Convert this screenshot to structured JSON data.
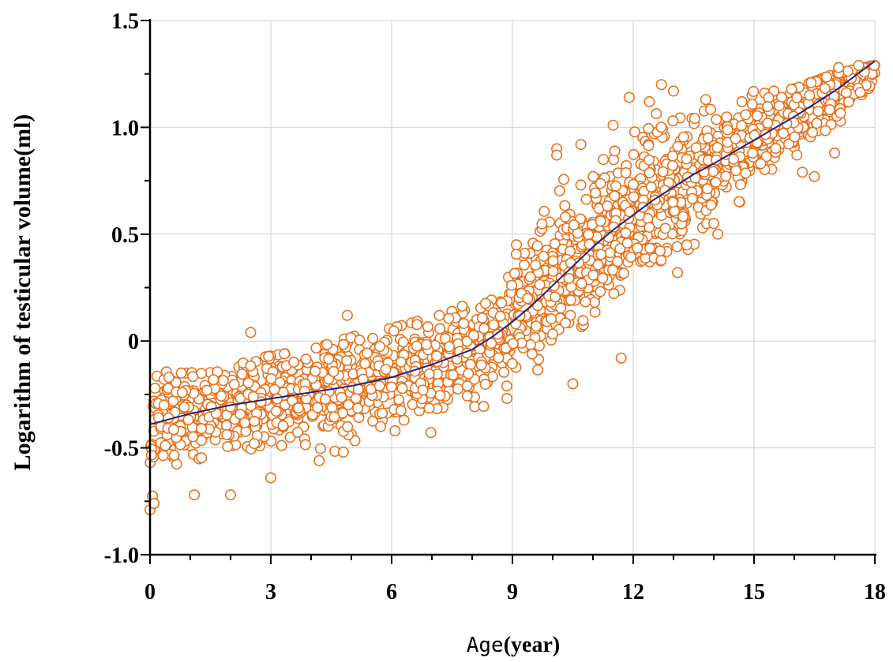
{
  "chart_data": {
    "type": "scatter",
    "title": "",
    "ylabel": "Logarithm of testicular volume(ml)",
    "xlabel_parts": [
      "Age",
      "(year)"
    ],
    "xlim": [
      0,
      18
    ],
    "ylim": [
      -1.0,
      1.5
    ],
    "grid": true,
    "xticks": [
      0,
      3,
      6,
      9,
      12,
      15,
      18
    ],
    "xtick_labels": [
      "0",
      "3",
      "6",
      "9",
      "12",
      "15",
      "18"
    ],
    "yticks": [
      -1.0,
      -0.5,
      0,
      0.5,
      1.0,
      1.5
    ],
    "ytick_labels": [
      "-1.0",
      "-0.5",
      "0",
      "0.5",
      "1.0",
      "1.5"
    ],
    "colors": {
      "points": "#E8711B",
      "fit_line": "#23237E",
      "grid": "#D0D0D0",
      "axis": "#000000"
    },
    "fit_line": {
      "x": [
        0,
        1,
        2,
        3,
        4,
        5,
        6,
        7,
        8,
        8.5,
        9,
        9.5,
        10,
        10.5,
        11,
        11.5,
        12,
        12.5,
        13,
        13.5,
        14,
        15,
        16,
        17,
        18
      ],
      "y": [
        -0.39,
        -0.34,
        -0.3,
        -0.27,
        -0.24,
        -0.21,
        -0.17,
        -0.11,
        -0.04,
        0.02,
        0.09,
        0.17,
        0.26,
        0.35,
        0.44,
        0.52,
        0.59,
        0.66,
        0.72,
        0.78,
        0.83,
        0.94,
        1.05,
        1.17,
        1.31
      ]
    },
    "scatter_bands": {
      "x": [
        0,
        0.5,
        1,
        2,
        3,
        4,
        5,
        6,
        7,
        8,
        8.5,
        9,
        9.5,
        10,
        10.5,
        11,
        11.5,
        12,
        12.5,
        13,
        13.5,
        14,
        14.5,
        15,
        15.5,
        16,
        17,
        18
      ],
      "low": [
        -0.78,
        -0.63,
        -0.68,
        -0.64,
        -0.6,
        -0.54,
        -0.5,
        -0.47,
        -0.44,
        -0.37,
        -0.32,
        -0.25,
        -0.18,
        -0.1,
        -0.01,
        0.09,
        0.16,
        0.22,
        0.29,
        0.35,
        0.45,
        0.55,
        0.63,
        0.7,
        0.76,
        0.82,
        0.9,
        1.02
      ],
      "high": [
        -0.12,
        -0.15,
        -0.15,
        -0.1,
        -0.07,
        -0.04,
        0.02,
        0.06,
        0.11,
        0.18,
        0.24,
        0.36,
        0.6,
        0.74,
        0.84,
        0.92,
        0.98,
        1.03,
        1.06,
        1.09,
        1.08,
        1.1,
        1.1,
        1.17,
        1.17,
        1.18,
        1.25,
        1.29
      ]
    },
    "highlighted_points": [
      {
        "x": 2.5,
        "y": 0.04
      },
      {
        "x": 4.9,
        "y": 0.12
      },
      {
        "x": 10.1,
        "y": 0.9
      },
      {
        "x": 10.1,
        "y": 0.87
      },
      {
        "x": 10.7,
        "y": 0.92
      },
      {
        "x": 11.5,
        "y": 1.01
      },
      {
        "x": 11.9,
        "y": 1.14
      },
      {
        "x": 12.4,
        "y": 1.12
      },
      {
        "x": 12.7,
        "y": 1.2
      },
      {
        "x": 13.0,
        "y": 1.17
      },
      {
        "x": 13.8,
        "y": 1.13
      },
      {
        "x": 14.1,
        "y": 0.5
      },
      {
        "x": 14.0,
        "y": 0.55
      },
      {
        "x": 14.7,
        "y": 1.12
      },
      {
        "x": 16.2,
        "y": 0.79
      },
      {
        "x": 16.5,
        "y": 0.77
      },
      {
        "x": 17.0,
        "y": 0.88
      },
      {
        "x": 17.1,
        "y": 1.28
      },
      {
        "x": 17.6,
        "y": 1.29
      },
      {
        "x": 0.0,
        "y": -0.79
      },
      {
        "x": 0.1,
        "y": -0.76
      },
      {
        "x": 1.1,
        "y": -0.72
      },
      {
        "x": 2.0,
        "y": -0.72
      },
      {
        "x": 3.0,
        "y": -0.64
      },
      {
        "x": 4.2,
        "y": -0.56
      },
      {
        "x": 4.8,
        "y": -0.52
      },
      {
        "x": 11.7,
        "y": -0.08
      },
      {
        "x": 10.5,
        "y": -0.2
      },
      {
        "x": 9.1,
        "y": 0.45
      },
      {
        "x": 13.1,
        "y": 0.32
      }
    ],
    "sample_count": 2400,
    "seed": 7
  }
}
